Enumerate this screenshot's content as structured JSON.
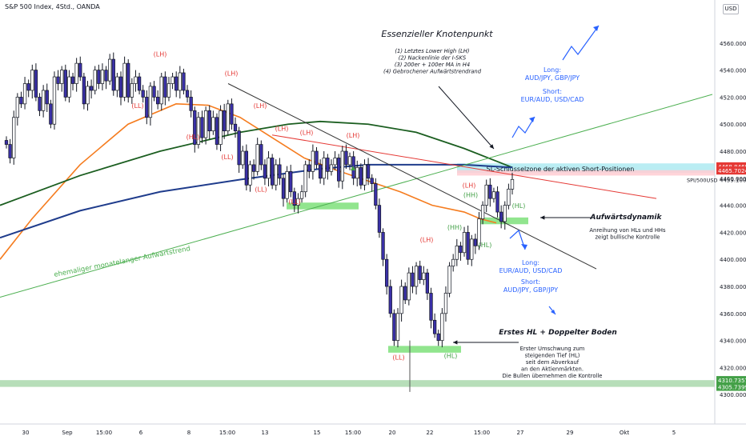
{
  "header": {
    "title": "S&P 500 Index, 4Std., OANDA",
    "currency": "USD"
  },
  "colors": {
    "up": "#ffffff",
    "down": "#3a30a8",
    "wick": "#131722",
    "ema_orange": "#f57c1f",
    "ma_dark_green": "#1b5e20",
    "ma_blue": "#1f3c8c",
    "trend_green": "#4caf50",
    "red_line": "#e53935",
    "black_line": "#333333",
    "label_red": "#e53935",
    "label_green": "#43a047",
    "blue_text": "#2962ff"
  },
  "chart_data": {
    "type": "candlestick",
    "title": "S&P 500 Index, 4Std., OANDA",
    "symbol": "SPI/500USD",
    "x_ticks": [
      "30",
      "Sep",
      "15:00",
      "6",
      "8",
      "15:00",
      "13",
      "15",
      "15:00",
      "20",
      "22",
      "15:00",
      "27",
      "29",
      "Okt",
      "5"
    ],
    "y_ticks": [
      "4560.0000",
      "4540.0000",
      "4520.0000",
      "4500.0000",
      "4480.0000",
      "4460.0000",
      "4440.0000",
      "4420.0000",
      "4400.0000",
      "4380.0000",
      "4360.0000",
      "4340.0000",
      "4320.0000",
      "4300.0000"
    ],
    "ylim": [
      4296,
      4580
    ],
    "price_tags": [
      {
        "value": 4468.846,
        "label": "4468.8460",
        "color": "#e53935"
      },
      {
        "value": 4465.7024,
        "label": "4465.7024",
        "color": "#e53935"
      },
      {
        "value": 4310.7357,
        "label": "4310.7357",
        "color": "#43a047"
      },
      {
        "value": 4305.7399,
        "label": "4305.7399",
        "color": "#43a047"
      }
    ],
    "last_price": {
      "value": 4459.1,
      "label": "4459.1000"
    },
    "zones": [
      {
        "y1": 4471,
        "y2": 4464,
        "label": "SL-Schlüsselzone der aktiven Short-Positionen",
        "color": "#b2ebf2"
      },
      {
        "y1": 4466,
        "y2": 4462,
        "color": "#ffcdd2"
      },
      {
        "y1": 4310.7,
        "y2": 4305.7,
        "color": "#a5d6a7"
      }
    ],
    "candle_walk": [
      4485,
      4475,
      4505,
      4520,
      4515,
      4530,
      4525,
      4540,
      4520,
      4510,
      4525,
      4515,
      4500,
      4535,
      4530,
      4540,
      4520,
      4535,
      4530,
      4545,
      4535,
      4515,
      4528,
      4525,
      4540,
      4530,
      4540,
      4532,
      4548,
      4525,
      4535,
      4520,
      4545,
      4520,
      4530,
      4535,
      4525,
      4520,
      4505,
      4528,
      4520,
      4515,
      4535,
      4520,
      4530,
      4535,
      4525,
      4538,
      4525,
      4520,
      4510,
      4485,
      4505,
      4490,
      4510,
      4495,
      4505,
      4485,
      4510,
      4495,
      4515,
      4500,
      4495,
      4470,
      4480,
      4455,
      4470,
      4465,
      4485,
      4470,
      4460,
      4475,
      4455,
      4470,
      4460,
      4445,
      4465,
      4450,
      4440,
      4445,
      4450,
      4470,
      4465,
      4480,
      4470,
      4460,
      4475,
      4465,
      4470,
      4475,
      4458,
      4480,
      4470,
      4476,
      4460,
      4468,
      4455,
      4470,
      4460,
      4456,
      4440,
      4420,
      4400,
      4380,
      4360,
      4340,
      4360,
      4380,
      4370,
      4390,
      4380,
      4395,
      4385,
      4390,
      4375,
      4355,
      4345,
      4340,
      4360,
      4375,
      4395,
      4400,
      4410,
      4405,
      4420,
      4400,
      4415,
      4410,
      4430,
      4440,
      4455,
      4445,
      4450,
      4435,
      4428,
      4440,
      4452,
      4459.1
    ],
    "lines": [
      {
        "name": "ema_orange",
        "points": [
          [
            0,
            4400
          ],
          [
            40,
            4430
          ],
          [
            100,
            4470
          ],
          [
            160,
            4500
          ],
          [
            220,
            4515
          ],
          [
            260,
            4514
          ],
          [
            300,
            4505
          ],
          [
            340,
            4490
          ],
          [
            380,
            4475
          ],
          [
            420,
            4466
          ],
          [
            460,
            4458
          ],
          [
            500,
            4450
          ],
          [
            540,
            4440
          ],
          [
            580,
            4435
          ],
          [
            600,
            4430
          ],
          [
            620,
            4427
          ]
        ]
      },
      {
        "name": "ma_dark_green",
        "points": [
          [
            0,
            4440
          ],
          [
            100,
            4462
          ],
          [
            200,
            4480
          ],
          [
            300,
            4494
          ],
          [
            360,
            4500
          ],
          [
            400,
            4502
          ],
          [
            460,
            4500
          ],
          [
            520,
            4494
          ],
          [
            580,
            4482
          ],
          [
            640,
            4468
          ]
        ]
      },
      {
        "name": "ma_blue",
        "points": [
          [
            0,
            4416
          ],
          [
            100,
            4436
          ],
          [
            200,
            4450
          ],
          [
            300,
            4459
          ],
          [
            400,
            4467
          ],
          [
            460,
            4470
          ],
          [
            520,
            4470
          ],
          [
            580,
            4470
          ],
          [
            640,
            4468
          ]
        ]
      },
      {
        "name": "trend_green",
        "points": [
          [
            0,
            4372
          ],
          [
            890,
            4522
          ]
        ]
      },
      {
        "name": "red_line",
        "points": [
          [
            340,
            4492
          ],
          [
            820,
            4445
          ]
        ]
      },
      {
        "name": "black_line",
        "points": [
          [
            285,
            4530
          ],
          [
            745,
            4393
          ]
        ]
      }
    ],
    "labels": [
      {
        "text": "(LH)",
        "x": 200,
        "y": 4550,
        "color": "red"
      },
      {
        "text": "(LL)",
        "x": 172,
        "y": 4512,
        "color": "red"
      },
      {
        "text": "(LH)",
        "x": 289,
        "y": 4536,
        "color": "red"
      },
      {
        "text": "(HL)",
        "x": 241,
        "y": 4489,
        "color": "red"
      },
      {
        "text": "(LL)",
        "x": 284,
        "y": 4474,
        "color": "red"
      },
      {
        "text": "(LH)",
        "x": 325,
        "y": 4512,
        "color": "red"
      },
      {
        "text": "(LH)",
        "x": 352,
        "y": 4495,
        "color": "red"
      },
      {
        "text": "(LH)",
        "x": 383,
        "y": 4492,
        "color": "red"
      },
      {
        "text": "(LH)",
        "x": 441,
        "y": 4490,
        "color": "red"
      },
      {
        "text": "(LL)",
        "x": 326,
        "y": 4450,
        "color": "red"
      },
      {
        "text": "(LL)",
        "x": 368,
        "y": 4441,
        "color": "red"
      },
      {
        "text": "(LH)",
        "x": 533,
        "y": 4413,
        "color": "red"
      },
      {
        "text": "(LH)",
        "x": 586,
        "y": 4453,
        "color": "red"
      },
      {
        "text": "(LL)",
        "x": 498,
        "y": 4326,
        "color": "red"
      },
      {
        "text": "(HH)",
        "x": 568,
        "y": 4422,
        "color": "green"
      },
      {
        "text": "(HH)",
        "x": 588,
        "y": 4446,
        "color": "green"
      },
      {
        "text": "(HL)",
        "x": 648,
        "y": 4438,
        "color": "green"
      },
      {
        "text": "(HL)",
        "x": 606,
        "y": 4409,
        "color": "green"
      },
      {
        "text": "(HL)",
        "x": 563,
        "y": 4327,
        "color": "green"
      }
    ],
    "annotations": {
      "title": "Essenzieller Knotenpunkt",
      "list": [
        "(1) Letztes Lower High (LH)",
        "(2) Nackenlinie der I-SKS",
        "(3) 200er + 100er MA in H4",
        "(4) Gebrochener Aufwärtstrendrand"
      ],
      "long1": [
        "Long:",
        "AUD/JPY, GBP/JPY"
      ],
      "short1": [
        "Short:",
        "EUR/AUD, USD/CAD"
      ],
      "long2": [
        "Long:",
        "EUR/AUD, USD/CAD"
      ],
      "short2": [
        "Short:",
        "AUD/JPY, GBP/JPY"
      ],
      "aufwaerts_title": "Aufwärtsdynamik",
      "aufwaerts_text": [
        "Anreihung von HLs und HHs",
        "zeigt bullische Kontrolle"
      ],
      "boden_title": "Erstes HL + Doppelter Boden",
      "boden_text": [
        "Erster Umschwung zum",
        "steigenden Tief (HL)",
        "seit dem Abverkauf",
        "an den Aktienmärkten.",
        "Die Bullen übernehmen die Kontrolle"
      ],
      "trend_label": "ehemaliger monatelanger Aufwärtstrend"
    }
  }
}
